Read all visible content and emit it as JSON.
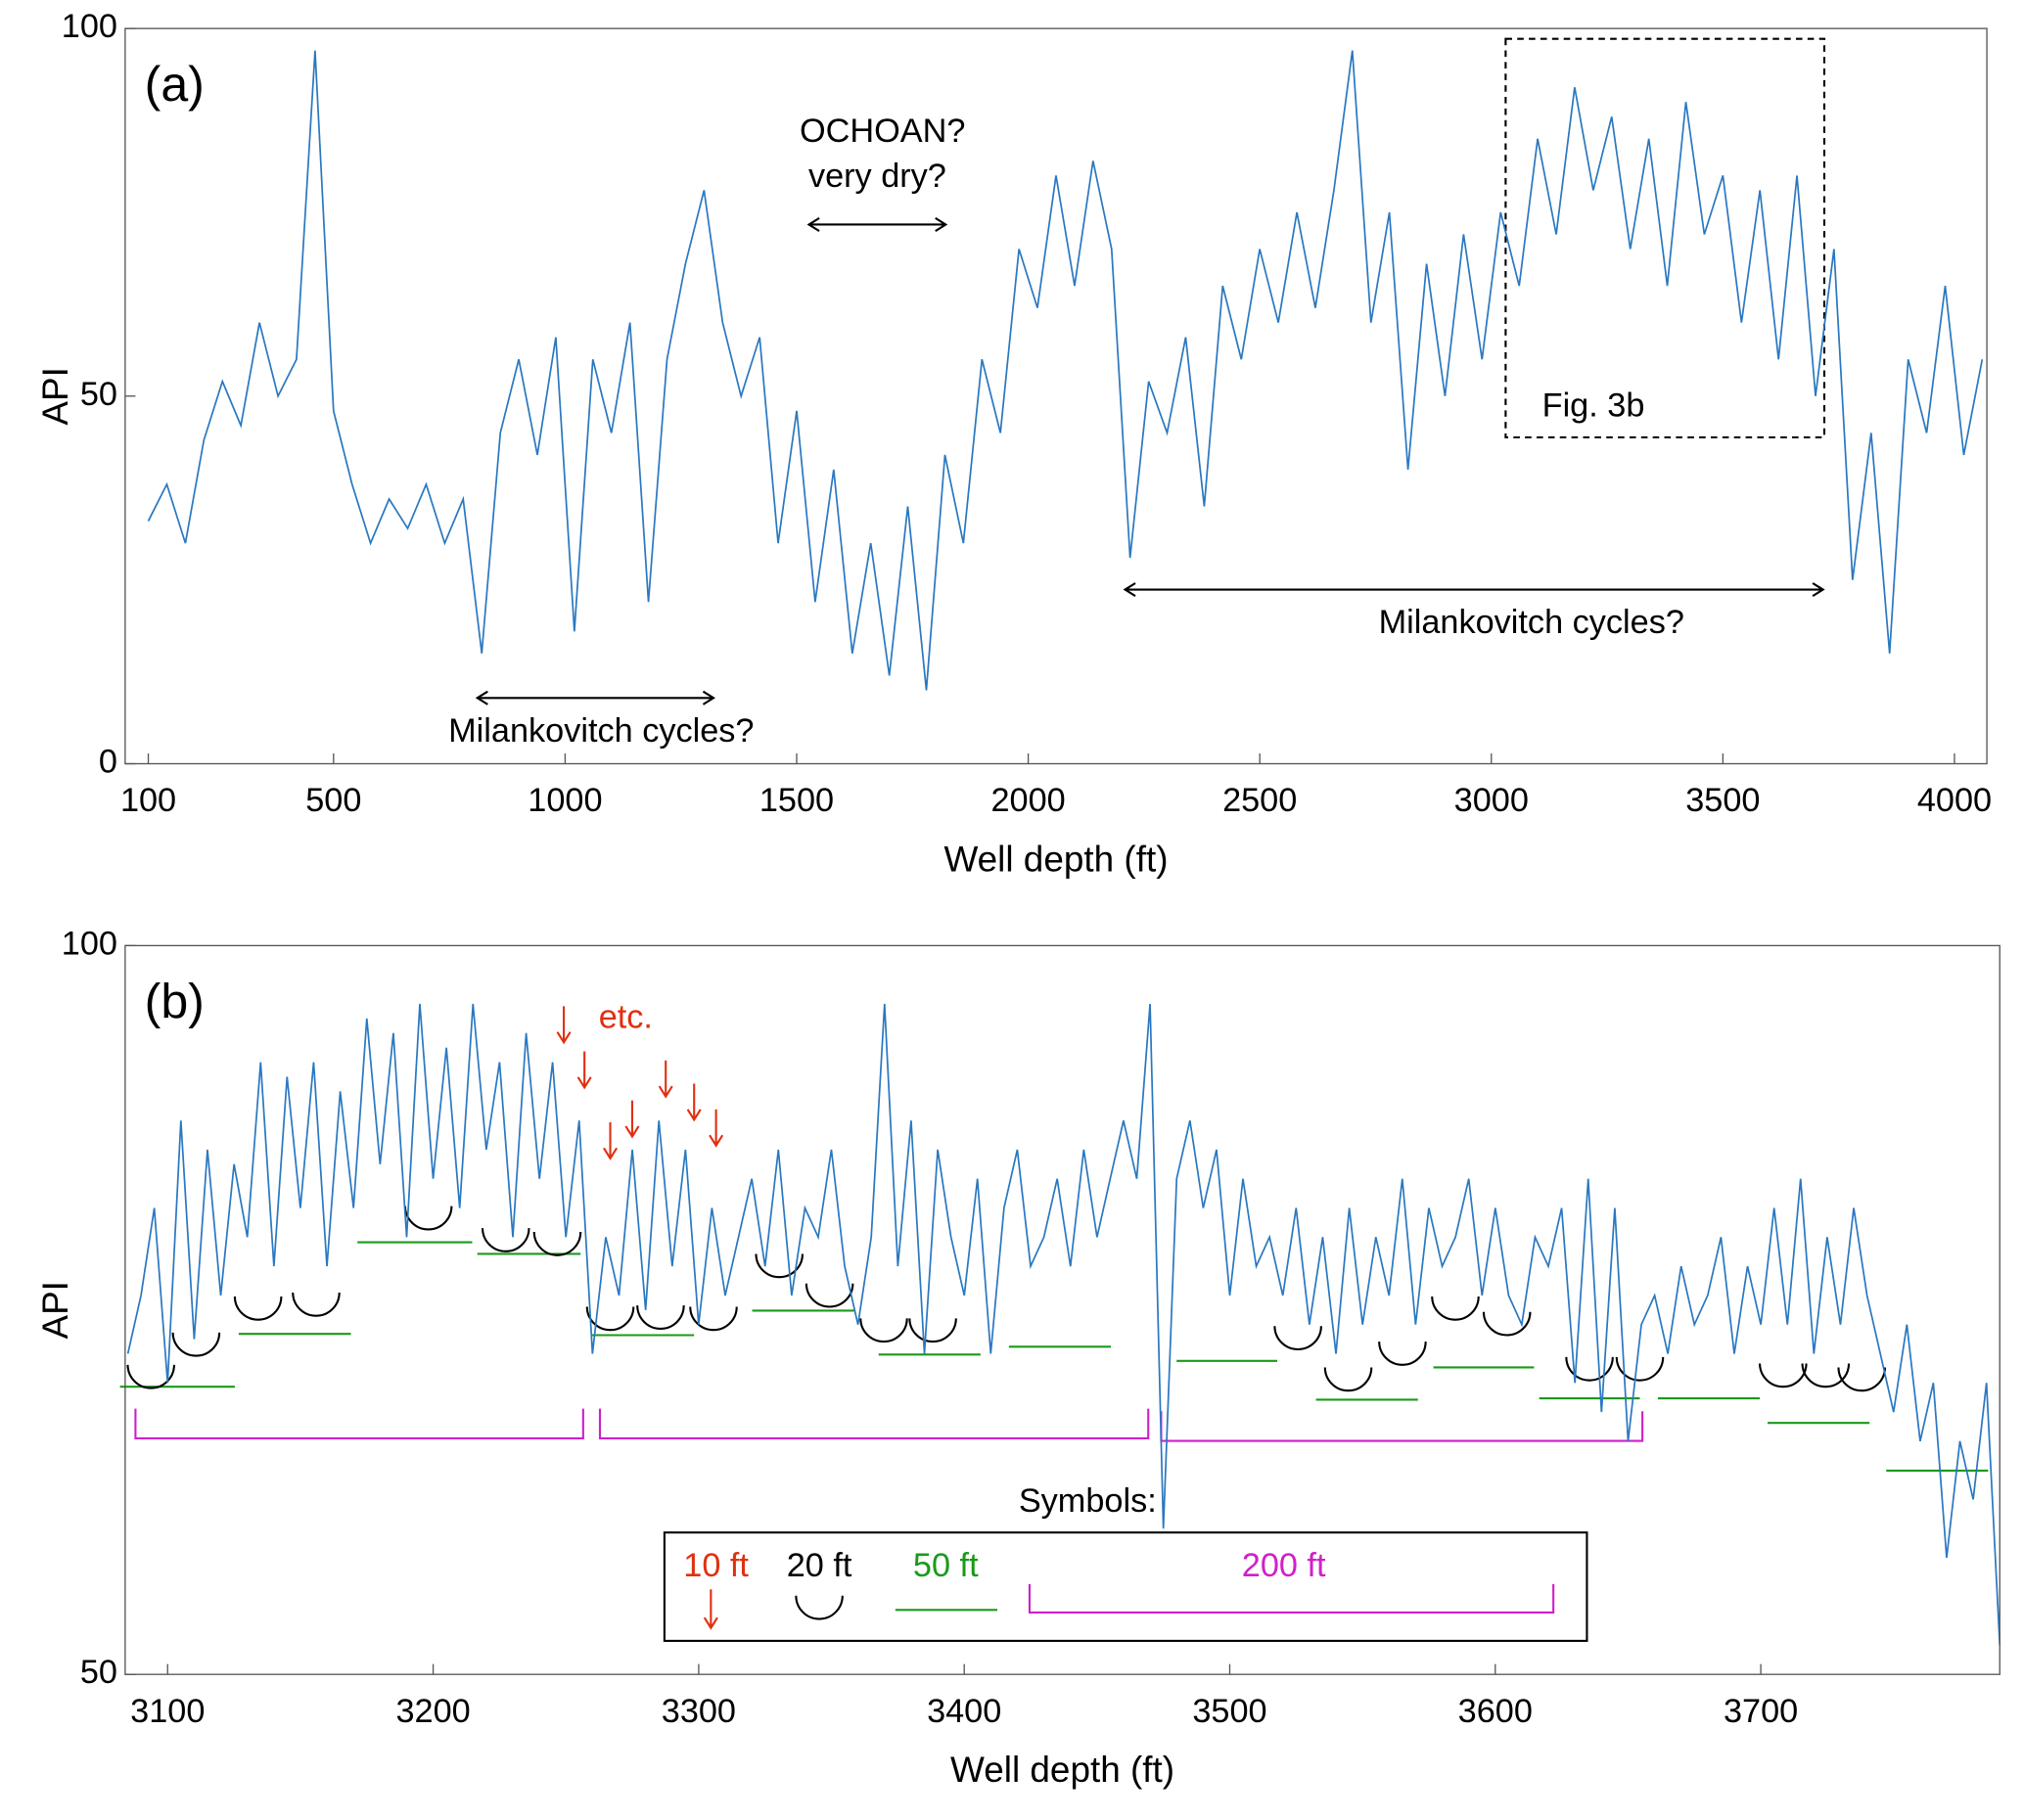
{
  "chart_data": [
    {
      "type": "line",
      "panel_label": "(a)",
      "xlabel": "Well depth (ft)",
      "ylabel": "API",
      "color": "#2a78c0",
      "xlim": [
        50,
        4070
      ],
      "xticks": [
        100,
        500,
        1000,
        1500,
        2000,
        2500,
        3000,
        3500,
        4000
      ],
      "ylim": [
        0,
        100
      ],
      "yticks": [
        0,
        50,
        100
      ],
      "annotations": [
        "OCHOAN?",
        "very dry?",
        "Milankovitch cycles?",
        "Milankovitch cycles?",
        "Fig. 3b"
      ],
      "x": [
        100,
        140,
        180,
        220,
        260,
        300,
        340,
        380,
        420,
        460,
        500,
        540,
        580,
        620,
        660,
        700,
        740,
        780,
        820,
        860,
        900,
        940,
        980,
        1020,
        1060,
        1100,
        1140,
        1180,
        1220,
        1260,
        1300,
        1340,
        1380,
        1420,
        1460,
        1500,
        1540,
        1580,
        1620,
        1660,
        1700,
        1740,
        1780,
        1820,
        1860,
        1900,
        1940,
        1980,
        2020,
        2060,
        2100,
        2140,
        2180,
        2220,
        2260,
        2300,
        2340,
        2380,
        2420,
        2460,
        2500,
        2540,
        2580,
        2620,
        2660,
        2700,
        2740,
        2780,
        2820,
        2860,
        2900,
        2940,
        2980,
        3020,
        3060,
        3100,
        3140,
        3180,
        3220,
        3260,
        3300,
        3340,
        3380,
        3420,
        3460,
        3500,
        3540,
        3580,
        3620,
        3660,
        3700,
        3740,
        3780,
        3820,
        3860,
        3900,
        3940,
        3980,
        4020,
        4060
      ],
      "values": [
        33,
        38,
        30,
        44,
        52,
        46,
        60,
        50,
        55,
        97,
        48,
        38,
        30,
        36,
        32,
        38,
        30,
        36,
        15,
        45,
        55,
        42,
        58,
        18,
        55,
        45,
        60,
        22,
        55,
        68,
        78,
        60,
        50,
        58,
        30,
        48,
        22,
        40,
        15,
        30,
        12,
        35,
        10,
        42,
        30,
        55,
        45,
        70,
        62,
        80,
        65,
        82,
        70,
        28,
        52,
        45,
        58,
        35,
        65,
        55,
        70,
        60,
        75,
        62,
        78,
        97,
        60,
        75,
        40,
        68,
        50,
        72,
        55,
        75,
        65,
        85,
        72,
        92,
        78,
        88,
        70,
        85,
        65,
        90,
        72,
        80,
        60,
        78,
        55,
        80,
        50,
        70,
        25,
        45,
        15,
        55,
        45,
        65,
        42,
        55
      ]
    },
    {
      "type": "line",
      "panel_label": "(b)",
      "xlabel": "Well depth (ft)",
      "ylabel": "API",
      "color": "#2a78c0",
      "xlim": [
        3084,
        3790
      ],
      "xticks": [
        3100,
        3200,
        3300,
        3400,
        3500,
        3600,
        3700
      ],
      "ylim": [
        50,
        100
      ],
      "yticks": [
        50,
        100
      ],
      "annotations": [
        "etc.",
        "Symbols:",
        "10 ft",
        "20 ft",
        "50 ft",
        "200 ft"
      ],
      "x": [
        3085,
        3090,
        3095,
        3100,
        3105,
        3110,
        3115,
        3120,
        3125,
        3130,
        3135,
        3140,
        3145,
        3150,
        3155,
        3160,
        3165,
        3170,
        3175,
        3180,
        3185,
        3190,
        3195,
        3200,
        3205,
        3210,
        3215,
        3220,
        3225,
        3230,
        3235,
        3240,
        3245,
        3250,
        3255,
        3260,
        3265,
        3270,
        3275,
        3280,
        3285,
        3290,
        3295,
        3300,
        3305,
        3310,
        3315,
        3320,
        3325,
        3330,
        3335,
        3340,
        3345,
        3350,
        3355,
        3360,
        3365,
        3370,
        3375,
        3380,
        3385,
        3390,
        3395,
        3400,
        3405,
        3410,
        3415,
        3420,
        3425,
        3430,
        3435,
        3440,
        3445,
        3450,
        3455,
        3460,
        3465,
        3470,
        3475,
        3480,
        3485,
        3490,
        3495,
        3500,
        3505,
        3510,
        3515,
        3520,
        3525,
        3530,
        3535,
        3540,
        3545,
        3550,
        3555,
        3560,
        3565,
        3570,
        3575,
        3580,
        3585,
        3590,
        3595,
        3600,
        3605,
        3610,
        3615,
        3620,
        3625,
        3630,
        3635,
        3640,
        3645,
        3650,
        3655,
        3660,
        3665,
        3670,
        3675,
        3680,
        3685,
        3690,
        3695,
        3700,
        3705,
        3710,
        3715,
        3720,
        3725,
        3730,
        3735,
        3740,
        3745,
        3750,
        3755,
        3760,
        3765,
        3770,
        3775,
        3780,
        3785,
        3790
      ],
      "values": [
        72,
        76,
        82,
        70,
        88,
        73,
        86,
        76,
        85,
        80,
        92,
        78,
        91,
        82,
        92,
        78,
        90,
        82,
        95,
        85,
        94,
        80,
        96,
        84,
        93,
        82,
        96,
        86,
        92,
        80,
        94,
        84,
        92,
        80,
        88,
        72,
        80,
        76,
        86,
        75,
        88,
        78,
        86,
        74,
        82,
        76,
        80,
        84,
        78,
        86,
        76,
        82,
        80,
        86,
        78,
        74,
        80,
        96,
        78,
        88,
        72,
        86,
        80,
        76,
        84,
        72,
        82,
        86,
        78,
        80,
        84,
        78,
        86,
        80,
        84,
        88,
        84,
        96,
        60,
        84,
        88,
        82,
        86,
        76,
        84,
        78,
        80,
        76,
        82,
        74,
        80,
        72,
        82,
        74,
        80,
        76,
        84,
        74,
        82,
        78,
        80,
        84,
        76,
        82,
        76,
        74,
        80,
        78,
        82,
        70,
        84,
        68,
        82,
        66,
        74,
        76,
        72,
        78,
        74,
        76,
        80,
        72,
        78,
        74,
        82,
        74,
        84,
        72,
        80,
        74,
        82,
        76,
        72,
        68,
        74,
        66,
        70,
        58,
        66,
        62,
        70,
        52
      ]
    }
  ]
}
